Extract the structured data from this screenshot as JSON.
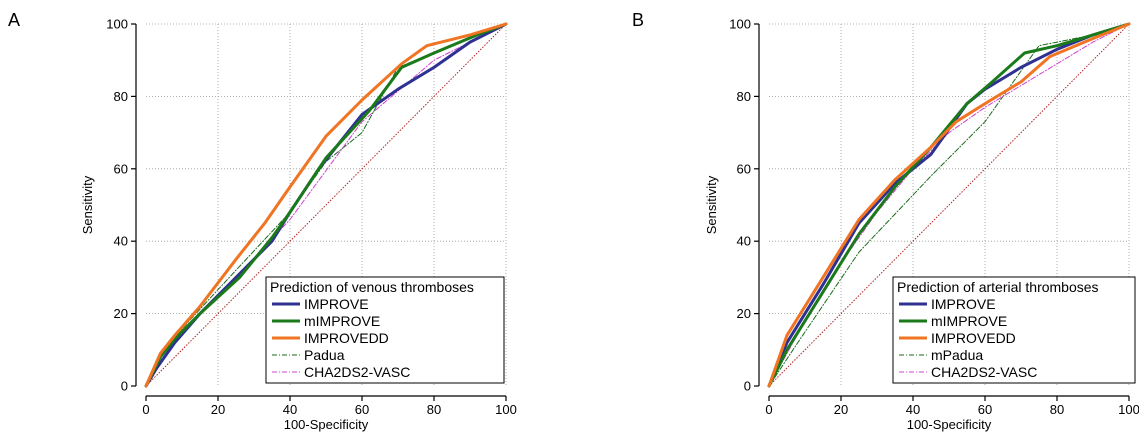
{
  "chart_data": [
    {
      "panel": "A",
      "type": "line",
      "xlabel": "100-Specificity",
      "ylabel": "Sensitivity",
      "xlim": [
        0,
        100
      ],
      "ylim": [
        0,
        100
      ],
      "xticks": [
        "0",
        "20",
        "40",
        "60",
        "80",
        "100"
      ],
      "yticks": [
        "0",
        "20",
        "40",
        "60",
        "80",
        "100"
      ],
      "grid": true,
      "legend_title": "Prediction of venous thromboses",
      "legend_position": "bottom-right",
      "reference_line": {
        "x": [
          0,
          100
        ],
        "y": [
          0,
          100
        ],
        "color": "#b22222"
      },
      "series": [
        {
          "name": "IMPROVE",
          "color": "#2e3192",
          "style": "solid",
          "width": 3,
          "x": [
            0,
            3,
            8,
            15,
            25,
            35,
            40,
            48,
            60,
            70,
            80,
            90,
            100
          ],
          "y": [
            0,
            5,
            12,
            20,
            30,
            40,
            48,
            60,
            75,
            82,
            88,
            95,
            100
          ]
        },
        {
          "name": "mIMPROVE",
          "color": "#1a7a1a",
          "style": "solid",
          "width": 3,
          "x": [
            0,
            4,
            8,
            15,
            26,
            35,
            40,
            50,
            62,
            71,
            80,
            92,
            100
          ],
          "y": [
            0,
            8,
            13,
            20,
            30,
            41,
            48,
            63,
            76,
            88,
            92,
            97,
            100
          ]
        },
        {
          "name": "IMPROVEDD",
          "color": "#f07422",
          "style": "solid",
          "width": 3,
          "x": [
            0,
            4,
            8,
            15,
            25,
            33,
            40,
            50,
            60,
            71,
            78,
            90,
            100
          ],
          "y": [
            0,
            9,
            14,
            22,
            35,
            45,
            55,
            69,
            79,
            89,
            94,
            97,
            100
          ]
        },
        {
          "name": "Padua",
          "color": "#1a6b1a",
          "style": "dashdot",
          "width": 1,
          "x": [
            0,
            5,
            12,
            25,
            40,
            50,
            60,
            70,
            80,
            90,
            100
          ],
          "y": [
            0,
            10,
            18,
            32,
            48,
            62,
            70,
            88,
            92,
            96,
            100
          ]
        },
        {
          "name": "CHA2DS2-VASC",
          "color": "#d040d0",
          "style": "dashdot",
          "width": 1,
          "x": [
            0,
            10,
            25,
            40,
            60,
            80,
            100
          ],
          "y": [
            0,
            15,
            30,
            46,
            73,
            90,
            100
          ]
        }
      ]
    },
    {
      "panel": "B",
      "type": "line",
      "xlabel": "100-Specificity",
      "ylabel": "Sensitivity",
      "xlim": [
        0,
        100
      ],
      "ylim": [
        0,
        100
      ],
      "xticks": [
        "0",
        "20",
        "40",
        "60",
        "80",
        "100"
      ],
      "yticks": [
        "0",
        "20",
        "40",
        "60",
        "80",
        "100"
      ],
      "grid": true,
      "legend_title": "Prediction of arterial thromboses",
      "legend_position": "bottom-right",
      "reference_line": {
        "x": [
          0,
          100
        ],
        "y": [
          0,
          100
        ],
        "color": "#b22222"
      },
      "series": [
        {
          "name": "IMPROVE",
          "color": "#2e3192",
          "style": "solid",
          "width": 3,
          "x": [
            0,
            5,
            15,
            25,
            35,
            45,
            55,
            60,
            70,
            80,
            90,
            100
          ],
          "y": [
            0,
            12,
            28,
            45,
            56,
            64,
            78,
            82,
            88,
            93,
            97,
            100
          ]
        },
        {
          "name": "mIMPROVE",
          "color": "#1a7a1a",
          "style": "solid",
          "width": 3,
          "x": [
            0,
            5,
            15,
            25,
            35,
            45,
            55,
            62,
            71,
            80,
            90,
            100
          ],
          "y": [
            0,
            10,
            26,
            42,
            55,
            66,
            78,
            84,
            92,
            94,
            97,
            100
          ]
        },
        {
          "name": "IMPROVEDD",
          "color": "#f07422",
          "style": "solid",
          "width": 3,
          "x": [
            0,
            5,
            15,
            25,
            35,
            45,
            52,
            60,
            70,
            78,
            90,
            100
          ],
          "y": [
            0,
            14,
            30,
            46,
            57,
            66,
            73,
            78,
            84,
            91,
            96,
            100
          ]
        },
        {
          "name": "mPadua",
          "color": "#1a6b1a",
          "style": "dashdot",
          "width": 1,
          "x": [
            0,
            8,
            25,
            45,
            60,
            75,
            90,
            100
          ],
          "y": [
            0,
            12,
            37,
            58,
            73,
            94,
            97,
            100
          ]
        },
        {
          "name": "CHA2DS2-VASC",
          "color": "#d040d0",
          "style": "dashdot",
          "width": 1,
          "x": [
            0,
            10,
            20,
            30,
            40,
            50,
            60,
            70,
            80,
            90,
            100
          ],
          "y": [
            0,
            18,
            34,
            48,
            60,
            70,
            77,
            83,
            89,
            95,
            100
          ]
        }
      ]
    }
  ]
}
